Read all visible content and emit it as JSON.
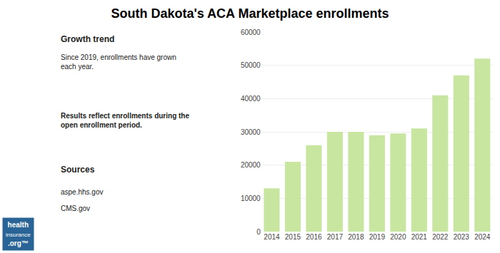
{
  "chart_data": {
    "type": "bar",
    "title": "South Dakota's ACA Marketplace enrollments",
    "categories": [
      "2014",
      "2015",
      "2016",
      "2017",
      "2018",
      "2019",
      "2020",
      "2021",
      "2022",
      "2023",
      "2024"
    ],
    "values": [
      13000,
      21000,
      26000,
      30000,
      30000,
      29000,
      29500,
      31000,
      41000,
      47000,
      52000
    ],
    "color": "#c8e6a0",
    "ylim": [
      0,
      60000
    ],
    "yticks": [
      0,
      10000,
      20000,
      30000,
      40000,
      50000,
      60000
    ],
    "grid": true,
    "annotations": [
      "Growth trend",
      "Since 2019, enrollments have grown\neach year.",
      "Results reflect enrollments during the\nopen enrollment period.",
      "Sources",
      "aspe.hhs.gov",
      "CMS.gov",
      "health",
      "insurance",
      ".org™"
    ]
  }
}
